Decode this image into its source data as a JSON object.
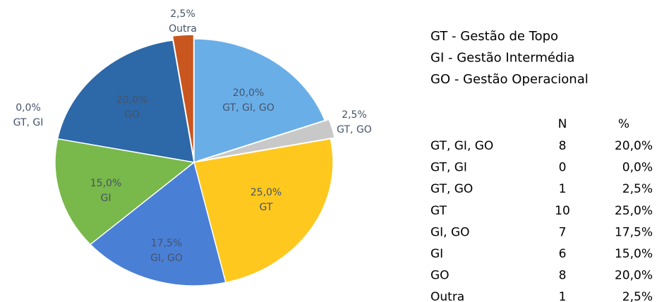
{
  "chart_data": {
    "type": "pie",
    "categories": [
      "GT, GI, GO",
      "GT, GI",
      "GT, GO",
      "GT",
      "GI, GO",
      "GI",
      "GO",
      "Outra"
    ],
    "values": [
      20,
      0,
      2.5,
      25,
      17.5,
      15,
      20,
      2.5
    ],
    "value_labels": [
      "20,0%",
      "0,0%",
      "2,5%",
      "25,0%",
      "17,5%",
      "15,0%",
      "20,0%",
      "2,5%"
    ],
    "colors": [
      "#6aaee8",
      "#c00000",
      "#c8c8c8",
      "#ffc81e",
      "#4a7fd6",
      "#79b84a",
      "#2d68a8",
      "#c8561e"
    ],
    "counts": [
      8,
      0,
      1,
      10,
      7,
      6,
      8,
      1
    ],
    "table_header": [
      "N",
      "%"
    ],
    "notes": [
      "GT - Gestão de Topo",
      "GI - Gestão Intermédia",
      "GO - Gestão Operacional"
    ]
  }
}
